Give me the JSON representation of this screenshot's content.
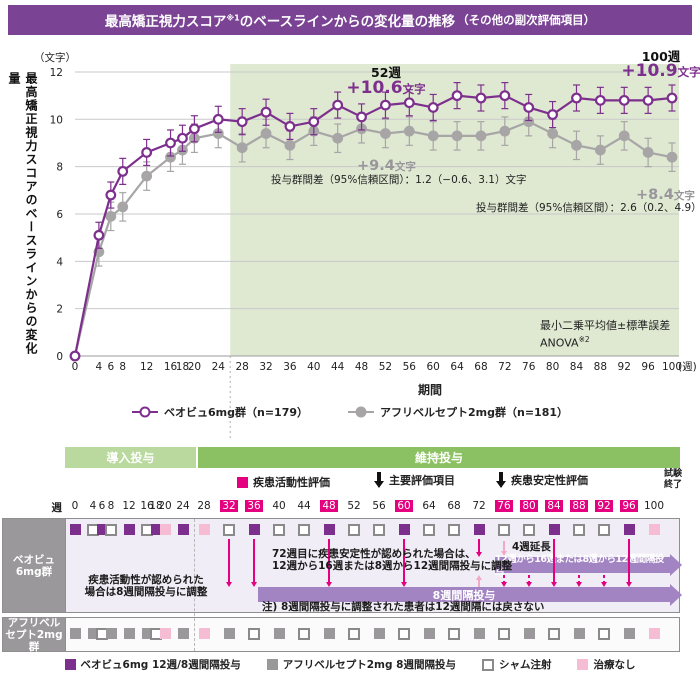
{
  "header": {
    "title_pre": "最高矯正視力スコア",
    "title_sup": "※1",
    "title_post": "のベースラインからの変化量の推移",
    "title_paren": "（その他の副次評価項目）"
  },
  "colors": {
    "title_purple": "#7a4394",
    "series_purple": "#7d2f8d",
    "series_gray": "#a7a5a6",
    "region_green": "#dfe9d2",
    "band_light_green": "#b9d99e",
    "band_dark_green": "#8cc163",
    "accent_magenta": "#e4007f",
    "no_treatment_pink": "#f5bcd4",
    "bar_purple": "#a184c1"
  },
  "chart_data": {
    "type": "line",
    "y_unit": "（文字）",
    "ylabel": "最高矯正視力スコアのベースラインからの変化量",
    "xlabel": "期間",
    "x_unit": "(週)",
    "ylim": [
      0,
      12
    ],
    "yticks": [
      0,
      2,
      4,
      6,
      8,
      10,
      12
    ],
    "x": [
      0,
      4,
      6,
      8,
      12,
      16,
      18,
      20,
      24,
      28,
      32,
      36,
      40,
      44,
      48,
      52,
      56,
      60,
      64,
      68,
      72,
      76,
      80,
      84,
      88,
      92,
      96,
      100
    ],
    "shaded_region": {
      "start_week": 26,
      "end_week": 100,
      "color": "#dfe9d2"
    },
    "series": [
      {
        "name": "ベオビュ6mg群（n=179）",
        "color": "#7d2f8d",
        "marker": "open-circle",
        "se": 0.55,
        "values": [
          0,
          5.1,
          6.8,
          7.8,
          8.6,
          9.0,
          9.2,
          9.6,
          10.0,
          9.9,
          10.3,
          9.7,
          9.9,
          10.6,
          10.1,
          10.6,
          10.7,
          10.5,
          11.0,
          10.9,
          11.0,
          10.5,
          10.2,
          10.9,
          10.8,
          10.8,
          10.8,
          10.9
        ]
      },
      {
        "name": "アフリベルセプト2mg群（n=181）",
        "color": "#a7a5a6",
        "marker": "filled-circle",
        "se": 0.6,
        "values": [
          0,
          4.4,
          5.9,
          6.3,
          7.6,
          8.4,
          8.7,
          9.2,
          9.4,
          8.8,
          9.4,
          8.9,
          9.5,
          9.2,
          9.6,
          9.4,
          9.5,
          9.3,
          9.3,
          9.3,
          9.5,
          9.9,
          9.4,
          8.9,
          8.7,
          9.3,
          8.6,
          8.4
        ]
      }
    ],
    "annotations": {
      "wk52_label": "52週",
      "wk52_value": "+10.6",
      "wk52_unit": "文字",
      "wk100_label": "100週",
      "wk100_value": "+10.9",
      "wk100_unit": "文字",
      "gray52_value": "+9.4",
      "gray52_unit": "文字",
      "gray100_value": "+8.4",
      "gray100_unit": "文字",
      "diff52": "投与群間差（95%信頼区間）：1.2（−0.6、3.1）文字",
      "diff100": "投与群間差（95%信頼区間）：2.6（0.2、4.9）文字",
      "stats_line1": "最小二乗平均値±標準誤差",
      "stats_line2_pre": "ANOVA",
      "stats_line2_sup": "※2"
    }
  },
  "schedule": {
    "week_axis_label": "週",
    "weeks": [
      0,
      4,
      6,
      8,
      12,
      16,
      18,
      20,
      24,
      28,
      32,
      36,
      40,
      44,
      48,
      52,
      56,
      60,
      64,
      68,
      72,
      76,
      80,
      84,
      88,
      92,
      96,
      100
    ],
    "highlighted_weeks": [
      32,
      36,
      48,
      60,
      76,
      80,
      84,
      88,
      92,
      96
    ],
    "phases": [
      {
        "label": "導入投与"
      },
      {
        "label": "維持投与"
      }
    ],
    "milestones": [
      {
        "icon": "activity-square",
        "label": "疾患活動性評価"
      },
      {
        "icon": "down-arrow",
        "label": "主要評価項目"
      },
      {
        "icon": "down-arrow",
        "label": "疾患安定性評価"
      },
      {
        "icon": "none",
        "label_line1": "試験",
        "label_line2": "終了"
      }
    ],
    "rows": [
      {
        "label": "ベオビュ6mg群",
        "cells": [
          "beovu",
          "sham",
          "beovu",
          "sham",
          "beovu",
          "sham",
          "beovu",
          "none",
          "beovu",
          "none",
          "sham",
          "beovu",
          "sham",
          "sham",
          "beovu",
          "sham",
          "sham",
          "beovu",
          "sham",
          "sham",
          "beovu",
          "sham",
          "sham",
          "beovu",
          "sham",
          "sham",
          "beovu",
          "none"
        ]
      },
      {
        "label": "アフリベルセプト2mg群",
        "cells": [
          "afl",
          "afl",
          "sham",
          "afl",
          "afl",
          "afl",
          "sham",
          "none",
          "afl",
          "none",
          "afl",
          "sham",
          "afl",
          "sham",
          "afl",
          "sham",
          "afl",
          "sham",
          "afl",
          "sham",
          "afl",
          "sham",
          "afl",
          "sham",
          "afl",
          "sham",
          "afl",
          "none"
        ]
      }
    ],
    "arrows": {
      "solid_weeks": [
        32,
        36,
        48,
        60,
        72,
        84,
        96
      ],
      "dashed_weeks": [
        76,
        80,
        88,
        92
      ],
      "up_week": 72,
      "extension_week": 76
    },
    "beovu_annotations": {
      "text1a": "72週目に疾患安定性が認められた場合は、",
      "text1b": "12週から16週または8週から12週間隔投与に調整",
      "extend_label": "4週延長",
      "bar1": "12週から16週または8週から12週間隔投与",
      "bar2": "8週間隔投与",
      "note": "注) 8週間隔投与に調整された患者は12週間隔には戻さない",
      "text2a": "疾患活動性が認められた",
      "text2b": "場合は8週間隔投与に調整"
    },
    "legend": [
      {
        "type": "beovu",
        "label": "ベオビュ6mg 12週/8週間隔投与"
      },
      {
        "type": "afl",
        "label": "アフリベルセプト2mg 8週間隔投与"
      },
      {
        "type": "sham",
        "label": "シャム注射"
      },
      {
        "type": "none",
        "label": "治療なし"
      }
    ]
  }
}
